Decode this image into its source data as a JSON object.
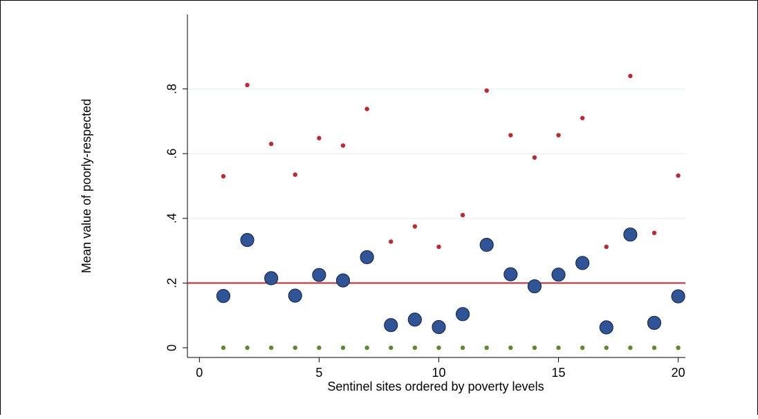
{
  "chart_data": {
    "type": "scatter",
    "xlabel": "Sentinel sites ordered by poverty levels",
    "ylabel": "Mean value of poorly-respected",
    "xlim": [
      -0.5,
      20.3
    ],
    "ylim": [
      -0.03,
      1.03
    ],
    "xticks": [
      0,
      5,
      10,
      15,
      20
    ],
    "xtick_labels": [
      "0",
      "5",
      "10",
      "15",
      "20"
    ],
    "yticks": [
      0,
      0.2,
      0.4,
      0.6,
      0.8
    ],
    "ytick_labels": [
      "0",
      ".2",
      ".4",
      ".6",
      ".8"
    ],
    "grid": "horizontal",
    "reference_line": {
      "y": 0.2,
      "color": "#c1272d"
    },
    "series": [
      {
        "marker": "large-circle",
        "color": "#2f5597",
        "x": [
          1,
          2,
          3,
          4,
          5,
          6,
          7,
          8,
          9,
          10,
          11,
          12,
          13,
          14,
          15,
          16,
          17,
          18,
          19,
          20
        ],
        "values": [
          0.16,
          0.333,
          0.215,
          0.161,
          0.225,
          0.208,
          0.28,
          0.07,
          0.087,
          0.064,
          0.104,
          0.318,
          0.227,
          0.19,
          0.226,
          0.262,
          0.063,
          0.35,
          0.077,
          0.159
        ]
      },
      {
        "marker": "small-dot",
        "color": "#c1272d",
        "x": [
          1,
          2,
          3,
          4,
          5,
          6,
          7,
          8,
          9,
          10,
          11,
          12,
          13,
          14,
          15,
          16,
          17,
          18,
          19,
          20
        ],
        "values": [
          0.53,
          0.812,
          0.63,
          0.535,
          0.648,
          0.625,
          0.738,
          0.328,
          0.375,
          0.312,
          0.41,
          0.795,
          0.657,
          0.588,
          0.657,
          0.71,
          0.312,
          0.84,
          0.355,
          0.532
        ]
      },
      {
        "marker": "small-dot",
        "color": "#5c8a2e",
        "x": [
          1,
          2,
          3,
          4,
          5,
          6,
          7,
          8,
          9,
          10,
          11,
          12,
          13,
          14,
          15,
          16,
          17,
          18,
          19,
          20
        ],
        "values": [
          0,
          0,
          0,
          0,
          0,
          0,
          0,
          0,
          0,
          0,
          0,
          0,
          0,
          0,
          0,
          0,
          0,
          0,
          0,
          0
        ]
      }
    ]
  }
}
